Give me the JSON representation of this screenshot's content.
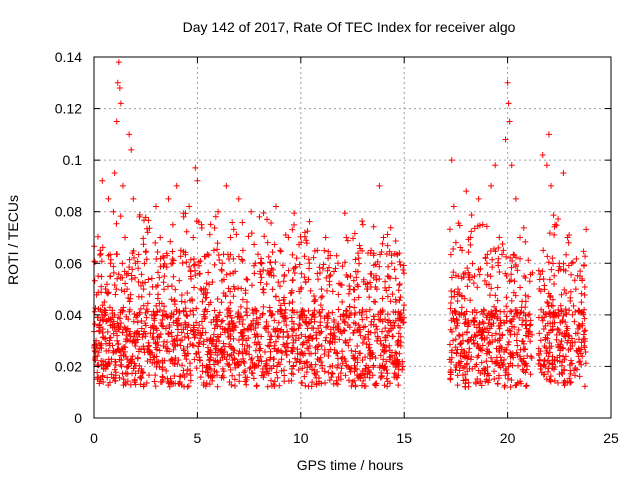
{
  "chart_data": {
    "type": "scatter",
    "title": "Day 142 of 2017, Rate Of TEC Index for receiver algo",
    "xlabel": "GPS time / hours",
    "ylabel": "ROTI / TECUs",
    "xlim": [
      0,
      25
    ],
    "ylim": [
      0,
      0.14
    ],
    "xticks": [
      0,
      5,
      10,
      15,
      20,
      25
    ],
    "yticks": [
      0,
      0.02,
      0.04,
      0.06,
      0.08,
      0.1,
      0.12,
      0.14
    ],
    "xtick_labels": [
      "0",
      "5",
      "10",
      "15",
      "20",
      "25"
    ],
    "ytick_labels": [
      "0",
      "0.02",
      "0.04",
      "0.06",
      "0.08",
      "0.1",
      "0.12",
      "0.14"
    ],
    "grid": true,
    "marker": "plus",
    "color": "#ff0000",
    "data_gap_hours": [
      15.0,
      17.0
    ],
    "segments": [
      {
        "x_start": 0.0,
        "x_end": 15.0
      },
      {
        "x_start": 17.2,
        "x_end": 21.2
      },
      {
        "x_start": 21.5,
        "x_end": 23.8
      }
    ],
    "points": [
      [
        0.1,
        0.03
      ],
      [
        0.2,
        0.055
      ],
      [
        0.3,
        0.065
      ],
      [
        0.4,
        0.092
      ],
      [
        0.5,
        0.045
      ],
      [
        0.6,
        0.02
      ],
      [
        0.7,
        0.085
      ],
      [
        0.8,
        0.06
      ],
      [
        0.9,
        0.035
      ],
      [
        1.0,
        0.095
      ],
      [
        1.1,
        0.115
      ],
      [
        1.15,
        0.13
      ],
      [
        1.2,
        0.138
      ],
      [
        1.25,
        0.128
      ],
      [
        1.3,
        0.122
      ],
      [
        1.4,
        0.09
      ],
      [
        1.5,
        0.07
      ],
      [
        1.6,
        0.05
      ],
      [
        1.7,
        0.11
      ],
      [
        1.8,
        0.104
      ],
      [
        1.9,
        0.085
      ],
      [
        2.0,
        0.06
      ],
      [
        2.2,
        0.078
      ],
      [
        2.4,
        0.05
      ],
      [
        2.6,
        0.072
      ],
      [
        2.8,
        0.04
      ],
      [
        3.0,
        0.082
      ],
      [
        3.2,
        0.07
      ],
      [
        3.4,
        0.055
      ],
      [
        3.6,
        0.085
      ],
      [
        3.8,
        0.06
      ],
      [
        4.0,
        0.09
      ],
      [
        4.2,
        0.065
      ],
      [
        4.4,
        0.045
      ],
      [
        4.6,
        0.082
      ],
      [
        4.8,
        0.07
      ],
      [
        4.9,
        0.097
      ],
      [
        5.0,
        0.092
      ],
      [
        5.2,
        0.075
      ],
      [
        5.4,
        0.05
      ],
      [
        5.6,
        0.03
      ],
      [
        5.8,
        0.065
      ],
      [
        6.0,
        0.08
      ],
      [
        6.2,
        0.06
      ],
      [
        6.4,
        0.09
      ],
      [
        6.6,
        0.07
      ],
      [
        6.8,
        0.05
      ],
      [
        7.0,
        0.085
      ],
      [
        7.2,
        0.065
      ],
      [
        7.4,
        0.045
      ],
      [
        7.6,
        0.08
      ],
      [
        7.8,
        0.06
      ],
      [
        8.0,
        0.078
      ],
      [
        8.2,
        0.05
      ],
      [
        8.4,
        0.068
      ],
      [
        8.6,
        0.04
      ],
      [
        8.8,
        0.082
      ],
      [
        9.0,
        0.065
      ],
      [
        9.2,
        0.055
      ],
      [
        9.4,
        0.07
      ],
      [
        9.6,
        0.045
      ],
      [
        9.8,
        0.062
      ],
      [
        10.0,
        0.05
      ],
      [
        10.2,
        0.072
      ],
      [
        10.4,
        0.058
      ],
      [
        10.6,
        0.04
      ],
      [
        10.8,
        0.065
      ],
      [
        11.0,
        0.05
      ],
      [
        11.2,
        0.07
      ],
      [
        11.4,
        0.055
      ],
      [
        11.6,
        0.038
      ],
      [
        11.8,
        0.06
      ],
      [
        12.0,
        0.045
      ],
      [
        12.2,
        0.07
      ],
      [
        12.4,
        0.055
      ],
      [
        12.6,
        0.04
      ],
      [
        12.8,
        0.062
      ],
      [
        13.0,
        0.075
      ],
      [
        13.2,
        0.05
      ],
      [
        13.4,
        0.065
      ],
      [
        13.6,
        0.045
      ],
      [
        13.8,
        0.09
      ],
      [
        14.0,
        0.07
      ],
      [
        14.2,
        0.055
      ],
      [
        14.4,
        0.06
      ],
      [
        14.6,
        0.045
      ],
      [
        14.8,
        0.035
      ],
      [
        17.3,
        0.1
      ],
      [
        17.4,
        0.082
      ],
      [
        17.5,
        0.068
      ],
      [
        17.6,
        0.05
      ],
      [
        17.8,
        0.065
      ],
      [
        18.0,
        0.088
      ],
      [
        18.2,
        0.07
      ],
      [
        18.4,
        0.055
      ],
      [
        18.6,
        0.085
      ],
      [
        18.8,
        0.075
      ],
      [
        19.0,
        0.06
      ],
      [
        19.2,
        0.09
      ],
      [
        19.4,
        0.098
      ],
      [
        19.6,
        0.07
      ],
      [
        19.8,
        0.065
      ],
      [
        19.9,
        0.108
      ],
      [
        20.0,
        0.13
      ],
      [
        20.05,
        0.122
      ],
      [
        20.1,
        0.115
      ],
      [
        20.2,
        0.098
      ],
      [
        20.4,
        0.085
      ],
      [
        20.6,
        0.07
      ],
      [
        20.8,
        0.055
      ],
      [
        21.0,
        0.04
      ],
      [
        21.7,
        0.102
      ],
      [
        21.9,
        0.098
      ],
      [
        22.0,
        0.11
      ],
      [
        22.1,
        0.09
      ],
      [
        22.3,
        0.075
      ],
      [
        22.5,
        0.06
      ],
      [
        22.7,
        0.095
      ],
      [
        22.9,
        0.07
      ],
      [
        23.1,
        0.06
      ],
      [
        23.3,
        0.05
      ],
      [
        23.5,
        0.055
      ],
      [
        23.7,
        0.042
      ]
    ]
  }
}
